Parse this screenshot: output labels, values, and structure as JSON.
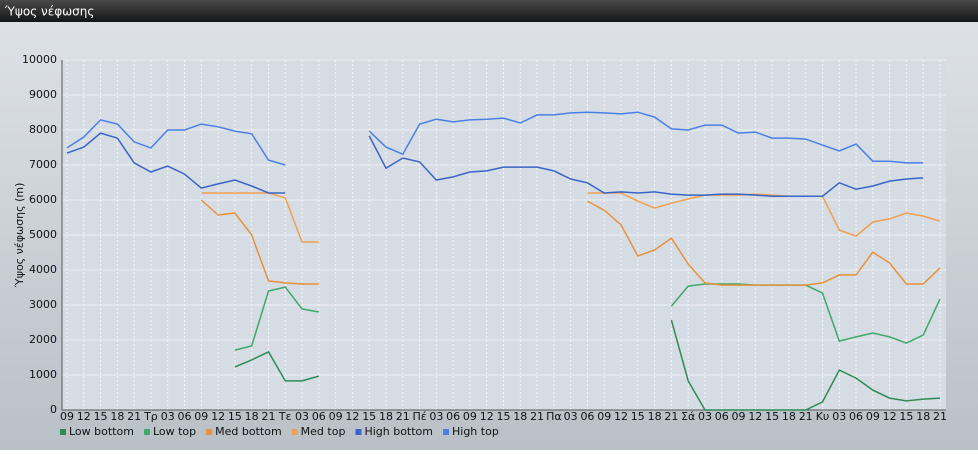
{
  "chart_data": {
    "type": "line",
    "title": "Ύψος νέφωσης",
    "y_label": "Ύψος νέφωσης (m)",
    "categories": [
      "09",
      "12",
      "15",
      "18",
      "21",
      "Τρ",
      "03",
      "06",
      "09",
      "12",
      "15",
      "18",
      "21",
      "Τε",
      "03",
      "06",
      "09",
      "12",
      "15",
      "18",
      "21",
      "Πέ",
      "03",
      "06",
      "09",
      "12",
      "15",
      "18",
      "21",
      "Πα",
      "03",
      "06",
      "09",
      "12",
      "15",
      "18",
      "21",
      "Σά",
      "03",
      "06",
      "09",
      "12",
      "15",
      "18",
      "21",
      "Κυ",
      "03",
      "06",
      "09",
      "12",
      "15",
      "18",
      "21"
    ],
    "ylim": [
      0,
      10000
    ],
    "yticks": [
      0,
      1000,
      2000,
      3000,
      4000,
      5000,
      6000,
      7000,
      8000,
      9000,
      10000
    ],
    "grid": true,
    "series": [
      {
        "name": "Low bottom",
        "color": "#2e8b57",
        "values": [
          null,
          null,
          null,
          null,
          null,
          null,
          null,
          null,
          null,
          null,
          1230,
          1430,
          1660,
          830,
          830,
          970,
          null,
          null,
          null,
          null,
          null,
          null,
          null,
          null,
          null,
          null,
          null,
          null,
          null,
          null,
          null,
          null,
          null,
          null,
          null,
          null,
          2570,
          830,
          0,
          0,
          0,
          0,
          0,
          0,
          0,
          230,
          1140,
          910,
          570,
          340,
          260,
          310,
          340
        ]
      },
      {
        "name": "Low top",
        "color": "#3fa86a",
        "values": [
          null,
          null,
          null,
          null,
          null,
          null,
          null,
          null,
          null,
          null,
          1710,
          1830,
          3400,
          3510,
          2890,
          2800,
          null,
          null,
          null,
          null,
          null,
          null,
          null,
          null,
          null,
          null,
          null,
          null,
          null,
          null,
          null,
          null,
          null,
          null,
          null,
          null,
          2970,
          3540,
          3600,
          3600,
          3600,
          3570,
          3570,
          3570,
          3570,
          3340,
          1970,
          2090,
          2200,
          2090,
          1910,
          2140,
          3170
        ]
      },
      {
        "name": "Med bottom",
        "color": "#e8913a",
        "values": [
          null,
          null,
          null,
          null,
          null,
          null,
          null,
          null,
          6000,
          5570,
          5630,
          5000,
          3690,
          3630,
          3600,
          3600,
          null,
          null,
          null,
          null,
          null,
          null,
          null,
          null,
          null,
          null,
          null,
          null,
          null,
          null,
          null,
          5970,
          5710,
          5290,
          4400,
          4570,
          4910,
          4170,
          3630,
          3570,
          3570,
          3570,
          3570,
          3570,
          3570,
          3630,
          3860,
          3860,
          4510,
          4200,
          3600,
          3600,
          4060
        ]
      },
      {
        "name": "Med top",
        "color": "#f0a050",
        "values": [
          null,
          null,
          null,
          null,
          null,
          null,
          null,
          null,
          6200,
          6200,
          6200,
          6200,
          6200,
          6060,
          4800,
          4800,
          null,
          null,
          null,
          null,
          null,
          null,
          null,
          null,
          null,
          null,
          null,
          null,
          null,
          null,
          null,
          6200,
          6200,
          6200,
          5970,
          5770,
          5910,
          6030,
          6140,
          6140,
          6140,
          6170,
          6140,
          6110,
          6110,
          6110,
          5140,
          4970,
          5370,
          5460,
          5630,
          5540,
          5400
        ]
      },
      {
        "name": "High bottom",
        "color": "#3a64c8",
        "values": [
          7340,
          7510,
          7910,
          7770,
          7060,
          6800,
          6970,
          6740,
          6340,
          6460,
          6570,
          6400,
          6200,
          6200,
          null,
          null,
          null,
          null,
          7830,
          6910,
          7200,
          7090,
          6570,
          6660,
          6800,
          6830,
          6940,
          6940,
          6940,
          6830,
          6600,
          6490,
          6200,
          6230,
          6200,
          6230,
          6170,
          6140,
          6140,
          6170,
          6170,
          6140,
          6110,
          6110,
          6110,
          6110,
          6490,
          6310,
          6400,
          6540,
          6600,
          6630,
          null
        ]
      },
      {
        "name": "High top",
        "color": "#4a7fe6",
        "values": [
          7490,
          7800,
          8290,
          8170,
          7660,
          7490,
          8000,
          8000,
          8170,
          8090,
          7970,
          7890,
          7140,
          7000,
          null,
          null,
          null,
          null,
          7970,
          7510,
          7310,
          8170,
          8310,
          8230,
          8290,
          8310,
          8340,
          8200,
          8430,
          8430,
          8490,
          8510,
          8490,
          8460,
          8510,
          8370,
          8030,
          8000,
          8140,
          8140,
          7910,
          7940,
          7770,
          7770,
          7740,
          7570,
          7400,
          7600,
          7110,
          7110,
          7060,
          7060,
          null
        ]
      }
    ]
  }
}
